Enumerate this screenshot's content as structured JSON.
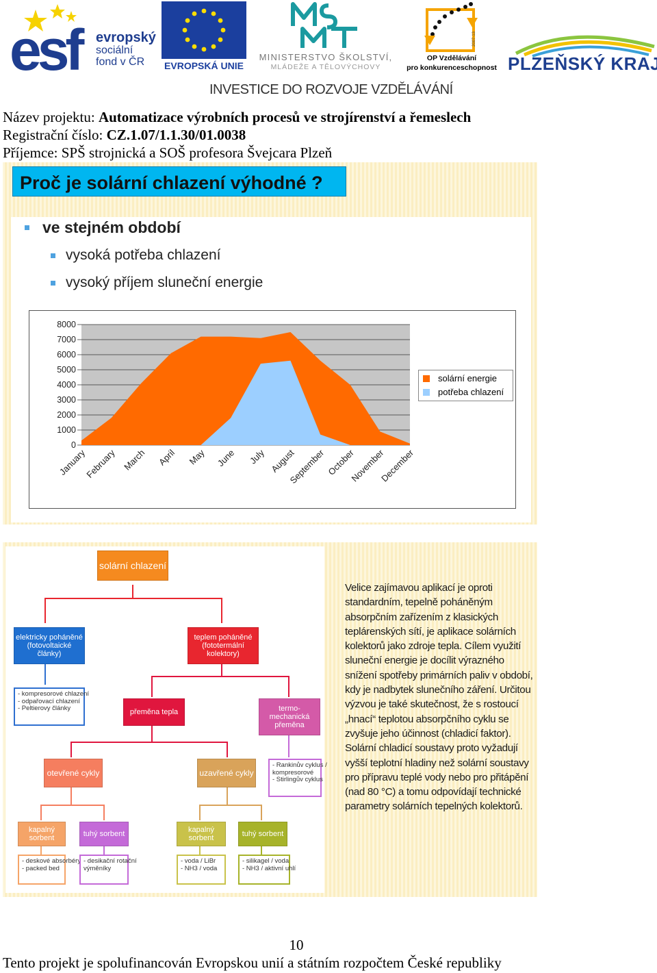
{
  "header": {
    "esf": {
      "line1": "evropský",
      "line2": "sociální",
      "line3": "fond v ČR"
    },
    "eu": {
      "label": "EVROPSKÁ UNIE"
    },
    "msmt": {
      "line1": "MINISTERSTVO ŠKOLSTVÍ,",
      "line2": "MLÁDEŽE A TĚLOVÝCHOVY"
    },
    "op": {
      "years": "2007-13",
      "line1": "OP Vzdělávání",
      "line2": "pro konkurenceschopnost"
    },
    "kraj": {
      "label": "PLZEŇSKÝ KRAJ"
    },
    "investice": "INVESTICE DO ROZVOJE VZDĚLÁVÁNÍ"
  },
  "project": {
    "name_label": "Název projektu: ",
    "name_value": "Automatizace výrobních procesů ve strojírenství a řemeslech",
    "reg_label": "Registrační číslo: ",
    "reg_value": "CZ.1.07/1.1.30/01.0038",
    "recipient_label": "Příjemce: ",
    "recipient_value": "SPŠ strojnická a SOŠ profesora Švejcara Plzeň"
  },
  "slide1": {
    "title": "Proč je solární chlazení výhodné ?",
    "bullet_main": "ve stejném období",
    "bullet_sub1": "vysoká potřeba chlazení",
    "bullet_sub2": "vysoký příjem sluneční energie"
  },
  "chart_data": {
    "type": "area",
    "categories": [
      "January",
      "February",
      "March",
      "April",
      "May",
      "June",
      "July",
      "August",
      "September",
      "October",
      "November",
      "December"
    ],
    "ylim": [
      0,
      8000
    ],
    "yticks": [
      0,
      1000,
      2000,
      3000,
      4000,
      5000,
      6000,
      7000,
      8000
    ],
    "grid": true,
    "legend_position": "right",
    "series": [
      {
        "name": "solární energie",
        "color": "#ff6a00",
        "values": [
          300,
          1800,
          4100,
          6100,
          7200,
          7200,
          7100,
          7500,
          5600,
          4000,
          900,
          100
        ]
      },
      {
        "name": "potřeba chlazení",
        "color": "#9ccfff",
        "values": [
          0,
          0,
          0,
          0,
          0,
          1800,
          5400,
          5600,
          700,
          0,
          0,
          0
        ]
      }
    ]
  },
  "slide2": {
    "root": "solární chlazení",
    "left_branch": {
      "line1": "elektricky poháněné",
      "line2": "(fotovoltaické články)"
    },
    "right_branch": {
      "line1": "teplem poháněné",
      "line2": "(fototermální kolektory)"
    },
    "left_leaf": [
      "- kompresorové chlazení",
      "- odpařovací chlazení",
      "- Peltierovy články"
    ],
    "heat_transfer": "přeměna tepla",
    "thermo": {
      "line1": "termo-mechanická",
      "line2": "přeměna"
    },
    "thermo_leaf": [
      "- Rankinův cyklus /",
      "kompresorové",
      "- Stirlingův cyklus"
    ],
    "open_cycles": "otevřené cykly",
    "closed_cycles": "uzavřené cykly",
    "open_liquid": "kapalný sorbent",
    "open_solid": "tuhý sorbent",
    "closed_liquid": "kapalný sorbent",
    "closed_solid": "tuhý sorbent",
    "leaf_open_liquid": [
      "- deskové absorbéry",
      "- packed bed"
    ],
    "leaf_open_solid": [
      "- desikační rotační",
      "výměníky"
    ],
    "leaf_closed_liquid": [
      "- voda / LiBr",
      "- NH3 / voda"
    ],
    "leaf_closed_solid": [
      "- silikagel / voda",
      "- NH3 / aktivní uhlí"
    ],
    "paragraph": "Velice zajímavou aplikací je oproti standardním, tepelně poháněným absorpčním zařízením z klasických teplárenských sítí, je aplikace solárních kolektorů jako zdroje tepla. Cílem využití sluneční energie je docílit výrazného snížení spotřeby primárních paliv v období, kdy je nadbytek slunečního záření. Určitou výzvou je také skutečnost, že s rostoucí „hnací“ teplotou absorpčního cyklu se zvyšuje jeho účinnost (chladicí faktor). Solární chladicí soustavy proto vyžadují vyšší teplotní hladiny než solární soustavy pro přípravu teplé vody nebo pro přitápění (nad 80 °C) a tomu odpovídají technické parametry solárních tepelných kolektorů."
  },
  "footer": {
    "page_number": "10",
    "text": "Tento projekt je spolufinancován Evropskou unií a státním rozpočtem České republiky"
  },
  "colors": {
    "esf_blue": "#1e3d8f",
    "eu_blue": "#1b3f9e",
    "eu_star": "#ffdd00",
    "title_cyan": "#00b6f0",
    "node_orange": "#f58a1f",
    "node_blue": "#1f6fd0",
    "node_red": "#e8262f",
    "node_crimson": "#e0163e",
    "node_pink": "#d45aa8",
    "node_salmon": "#f57e5f",
    "node_tan": "#d9a35a",
    "node_apricot": "#f5a468",
    "node_violet": "#c46ad8",
    "node_khaki": "#c9c24a",
    "node_olive": "#a7b32a"
  }
}
